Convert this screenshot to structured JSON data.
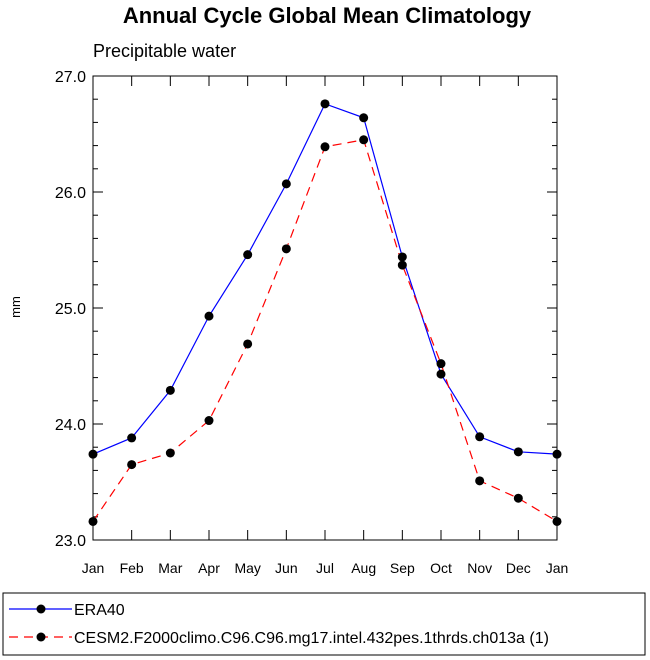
{
  "chart_data": {
    "type": "line",
    "title": "Annual Cycle Global Mean Climatology",
    "subtitle": "Precipitable water",
    "xlabel": "",
    "ylabel": "mm",
    "categories": [
      "Jan",
      "Feb",
      "Mar",
      "Apr",
      "May",
      "Jun",
      "Jul",
      "Aug",
      "Sep",
      "Oct",
      "Nov",
      "Dec",
      "Jan"
    ],
    "ylim": [
      23.0,
      27.0
    ],
    "yticks": [
      "23.0",
      "24.0",
      "25.0",
      "26.0",
      "27.0"
    ],
    "series": [
      {
        "name": "ERA40",
        "color": "#0000ff",
        "dash": "solid",
        "values": [
          23.74,
          23.88,
          24.29,
          24.93,
          25.46,
          26.07,
          26.76,
          26.64,
          25.44,
          24.43,
          23.89,
          23.76,
          23.74
        ]
      },
      {
        "name": "CESM2.F2000climo.C96.C96.mg17.intel.432pes.1thrds.ch013a (1)",
        "color": "#ff0000",
        "dash": "dashed",
        "values": [
          23.16,
          23.65,
          23.75,
          24.03,
          24.69,
          25.51,
          26.39,
          26.45,
          25.37,
          24.52,
          23.51,
          23.36,
          23.16
        ]
      }
    ],
    "legend_position": "bottom-left",
    "marker": "filled-circle",
    "marker_color": "#000000"
  }
}
